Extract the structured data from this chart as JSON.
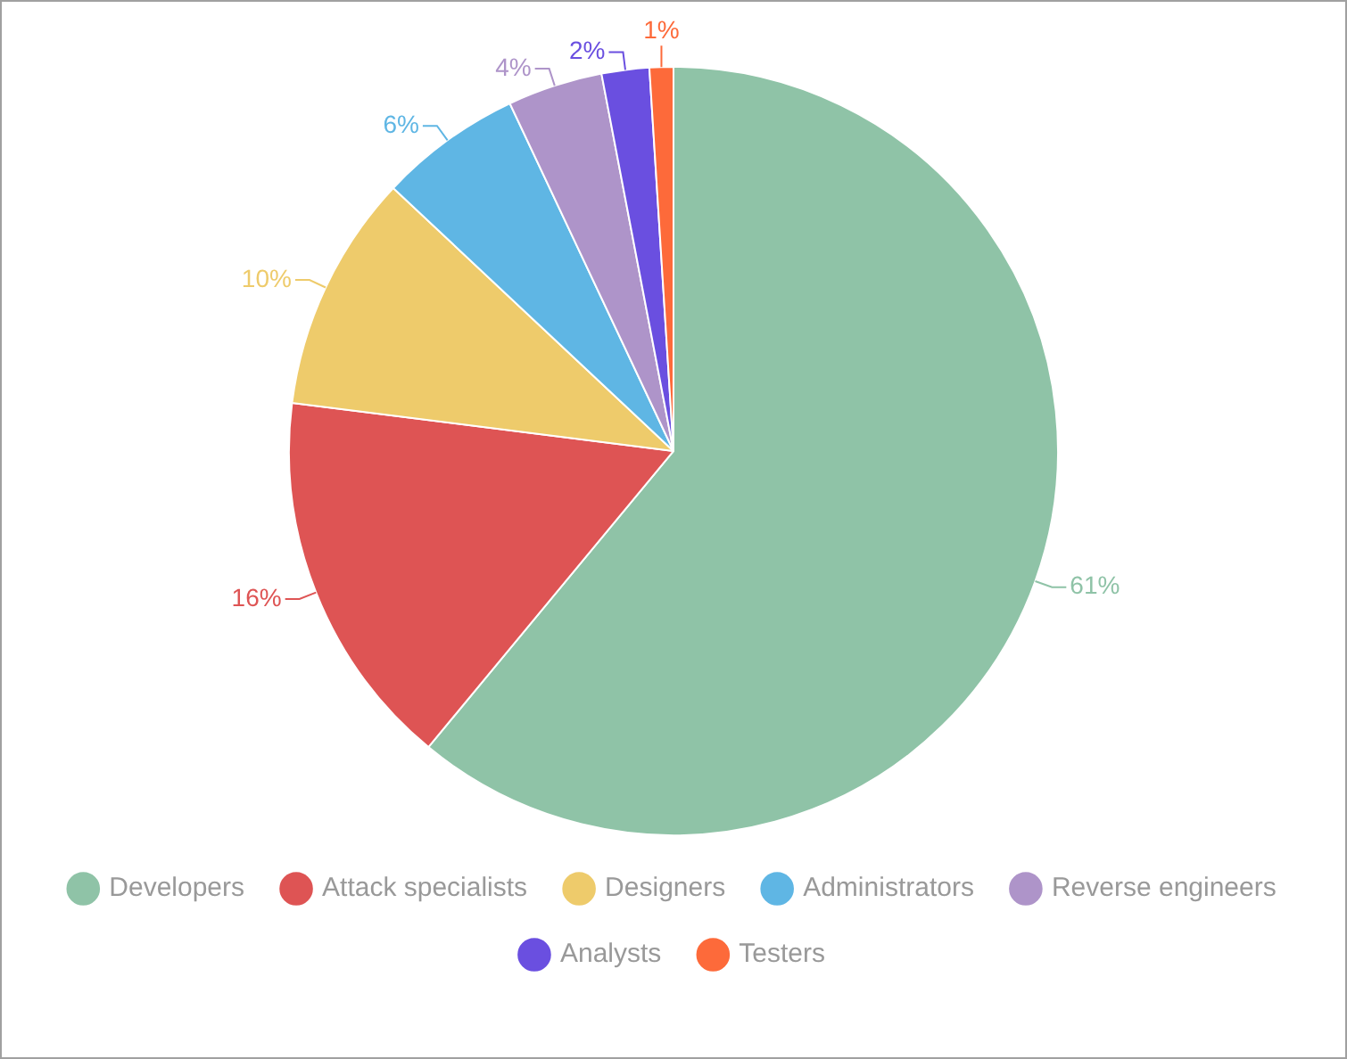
{
  "chart_data": {
    "type": "pie",
    "categories": [
      "Developers",
      "Attack specialists",
      "Designers",
      "Administrators",
      "Reverse engineers",
      "Analysts",
      "Testers"
    ],
    "values": [
      61,
      16,
      10,
      6,
      4,
      2,
      1
    ],
    "colors": [
      "#8fc3a7",
      "#de5454",
      "#eecb6b",
      "#5fb6e4",
      "#ae94c9",
      "#6a4fe0",
      "#fd6a3a"
    ],
    "value_labels": [
      "61%",
      "16%",
      "10%",
      "6%",
      "4%",
      "2%",
      "1%"
    ],
    "legend": "bottom"
  }
}
